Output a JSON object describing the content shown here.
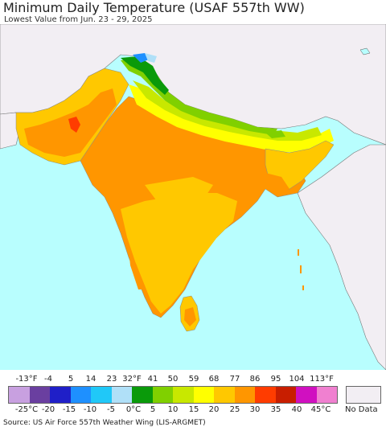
{
  "header": {
    "title": "Minimum Daily Temperature (USAF 557th WW)",
    "subtitle": "Lowest Value from Jun. 23 - 29, 2025"
  },
  "legend": {
    "fahrenheit_ticks": [
      "-13°F",
      "-4",
      "5",
      "14",
      "23",
      "32°F",
      "41",
      "50",
      "59",
      "68",
      "77",
      "86",
      "95",
      "104",
      "113°F"
    ],
    "celsius_ticks": [
      "-25°C",
      "-20",
      "-15",
      "-10",
      "-5",
      "0°C",
      "5",
      "10",
      "15",
      "20",
      "25",
      "30",
      "35",
      "40",
      "45°C"
    ],
    "colors": [
      "#c8a0e0",
      "#6a3fa0",
      "#1f1fc8",
      "#1e90ff",
      "#20c8f8",
      "#b0e0f8",
      "#0a9a0a",
      "#80d000",
      "#c8e800",
      "#ffff00",
      "#ffc800",
      "#ff9600",
      "#ff3c00",
      "#c81e00",
      "#d010c0",
      "#f080d0"
    ],
    "no_data_label": "No Data",
    "no_data_color": "#f2eef3"
  },
  "map_colors": {
    "ocean": "#b8fefe",
    "land_no_data": "#f2eef3",
    "temp_25_30": "#ff9600",
    "temp_20_25": "#ffc800",
    "temp_15_20": "#ffff00",
    "temp_10_15": "#c8e800",
    "temp_5_10": "#80d000",
    "temp_0_5": "#0a9a0a",
    "temp_neg": "#1e90ff",
    "temp_30_35": "#ff3c00"
  },
  "footer": {
    "source": "Source: US Air Force 557th Weather Wing (LIS-ARGMET)"
  }
}
